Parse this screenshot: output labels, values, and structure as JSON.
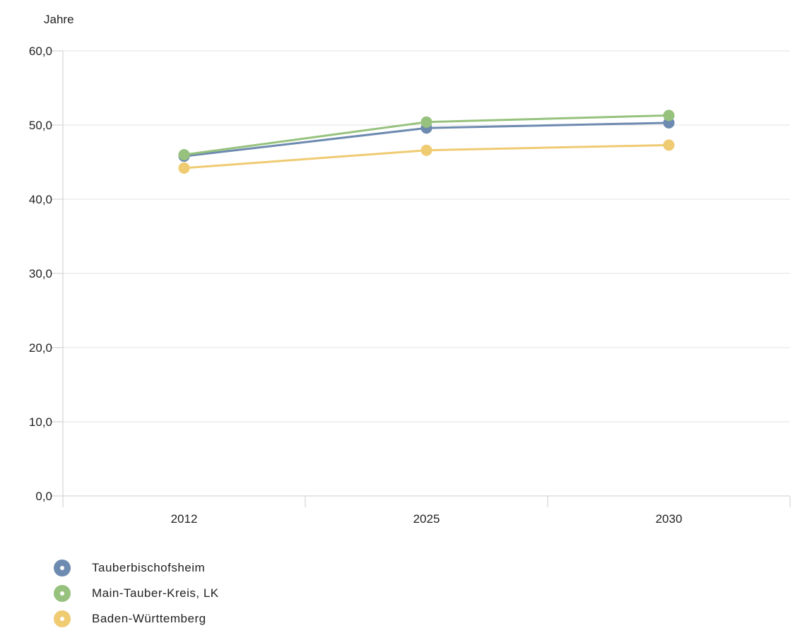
{
  "chart_data": {
    "type": "line",
    "unit_label": "Jahre",
    "categories": [
      "2012",
      "2025",
      "2030"
    ],
    "ylim": [
      0,
      60
    ],
    "y_ticks": [
      0,
      10,
      20,
      30,
      40,
      50,
      60
    ],
    "y_tick_labels": [
      "0,0",
      "10,0",
      "20,0",
      "30,0",
      "40,0",
      "50,0",
      "60,0"
    ],
    "grid": true,
    "legend_position": "bottom-left",
    "series": [
      {
        "name": "Tauberbischofsheim",
        "values": [
          45.8,
          49.6,
          50.3
        ],
        "color": "#6d8ab0"
      },
      {
        "name": "Main-Tauber-Kreis, LK",
        "values": [
          46.0,
          50.4,
          51.3
        ],
        "color": "#96c27d"
      },
      {
        "name": "Baden-Württemberg",
        "values": [
          44.2,
          46.6,
          47.3
        ],
        "color": "#efcb72"
      }
    ]
  }
}
